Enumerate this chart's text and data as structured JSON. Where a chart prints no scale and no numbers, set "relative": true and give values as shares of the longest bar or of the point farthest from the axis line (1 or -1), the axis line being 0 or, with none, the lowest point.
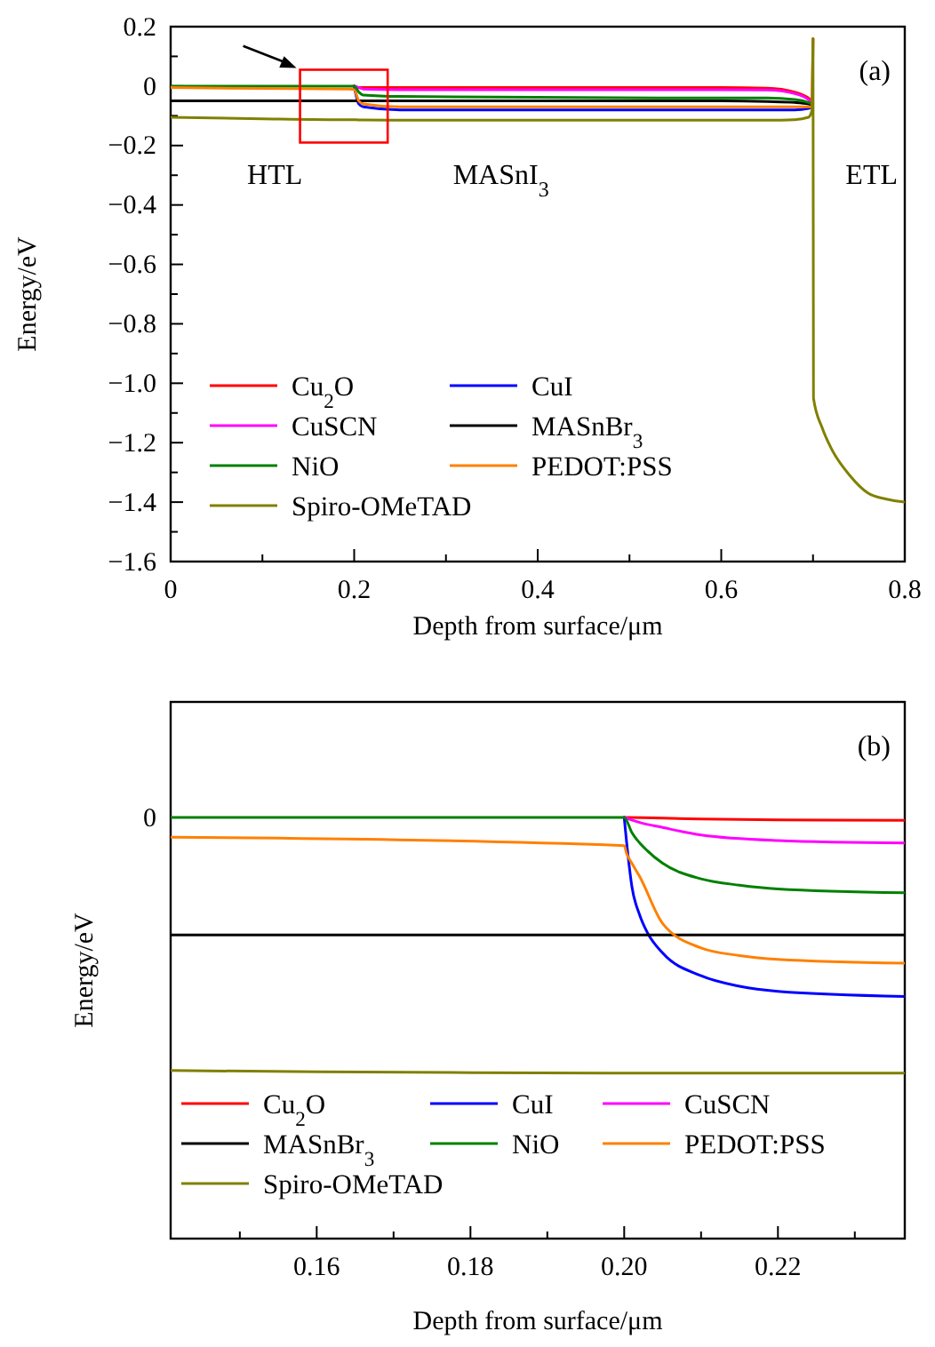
{
  "chart_data": [
    {
      "type": "line",
      "xlabel": "Depth from surface/μm",
      "ylabel": "Energy/eV",
      "xlim": [
        0,
        0.8
      ],
      "ylim": [
        -1.6,
        0.2
      ],
      "xticks": [
        0,
        {
          "value": 0.1,
          "label": null
        },
        0.2,
        {
          "value": 0.3,
          "label": null
        },
        0.4,
        {
          "value": 0.5,
          "label": null
        },
        0.6,
        {
          "value": 0.7,
          "label": null
        },
        0.8
      ],
      "yticks": [
        {
          "value": -1.6,
          "label": "−1.6"
        },
        {
          "value": -1.5,
          "label": null
        },
        {
          "value": -1.4,
          "label": "−1.4"
        },
        {
          "value": -1.3,
          "label": null
        },
        {
          "value": -1.2,
          "label": "−1.2"
        },
        {
          "value": -1.1,
          "label": null
        },
        {
          "value": -1.0,
          "label": "−1.0"
        },
        {
          "value": -0.9,
          "label": null
        },
        {
          "value": -0.8,
          "label": "−0.8"
        },
        {
          "value": -0.7,
          "label": null
        },
        {
          "value": -0.6,
          "label": "−0.6"
        },
        {
          "value": -0.5,
          "label": null
        },
        {
          "value": -0.4,
          "label": "−0.4"
        },
        {
          "value": -0.3,
          "label": null
        },
        {
          "value": -0.2,
          "label": "−0.2"
        },
        {
          "value": -0.1,
          "label": null
        },
        0,
        {
          "value": 0.1,
          "label": null
        },
        0.2
      ],
      "legend": "left",
      "annotations": [
        "(a)",
        "HTL",
        "MASnI$_{3}$",
        "ETL"
      ],
      "x": [
        0,
        0.1,
        0.195,
        0.2,
        0.205,
        0.21,
        0.25,
        0.4,
        0.6,
        0.65,
        0.68,
        0.695,
        0.699,
        0.7,
        0.7005,
        0.71,
        0.72,
        0.74,
        0.76,
        0.78,
        0.8
      ],
      "series": [
        {
          "name": "Cu$_{2}$O",
          "color": "#ff0000",
          "values": [
            null,
            null,
            null,
            0,
            -0.005,
            -0.005,
            -0.005,
            -0.005,
            -0.005,
            -0.007,
            -0.02,
            -0.04,
            -0.05,
            0.16,
            null,
            null,
            null,
            null,
            null,
            null,
            null
          ]
        },
        {
          "name": "CuI",
          "color": "#0000ff",
          "values": [
            null,
            null,
            null,
            0,
            -0.06,
            -0.07,
            -0.08,
            -0.08,
            -0.08,
            -0.08,
            -0.08,
            -0.075,
            -0.07,
            null,
            null,
            null,
            null,
            null,
            null,
            null,
            null
          ]
        },
        {
          "name": "CuSCN",
          "color": "#ff00ff",
          "values": [
            null,
            null,
            null,
            0,
            -0.005,
            -0.01,
            -0.012,
            -0.012,
            -0.012,
            -0.013,
            -0.025,
            -0.045,
            -0.055,
            null,
            null,
            null,
            null,
            null,
            null,
            null,
            null
          ]
        },
        {
          "name": "MASnBr$_{3}$",
          "color": "#000000",
          "values": [
            -0.05,
            -0.05,
            -0.05,
            -0.05,
            -0.05,
            -0.05,
            -0.05,
            -0.05,
            -0.05,
            -0.052,
            -0.055,
            -0.06,
            -0.065,
            null,
            null,
            null,
            null,
            null,
            null,
            null,
            null
          ]
        },
        {
          "name": "NiO",
          "color": "#008000",
          "values": [
            0,
            0,
            0,
            0,
            -0.02,
            -0.03,
            -0.035,
            -0.038,
            -0.04,
            -0.04,
            -0.045,
            -0.055,
            -0.06,
            null,
            null,
            null,
            null,
            null,
            null,
            null,
            null
          ]
        },
        {
          "name": "PEDOT:PSS",
          "color": "#ff8000",
          "values": [
            -0.005,
            -0.008,
            -0.01,
            -0.012,
            -0.05,
            -0.06,
            -0.07,
            -0.07,
            -0.07,
            -0.07,
            -0.07,
            -0.07,
            -0.07,
            0.16,
            null,
            null,
            null,
            null,
            null,
            null,
            null
          ]
        },
        {
          "name": "Spiro-OMeTAD",
          "color": "#808000",
          "values": [
            -0.105,
            -0.11,
            -0.113,
            -0.113,
            -0.114,
            -0.114,
            -0.115,
            -0.115,
            -0.115,
            -0.115,
            -0.113,
            -0.105,
            -0.08,
            0.16,
            -1.05,
            -1.15,
            -1.22,
            -1.31,
            -1.37,
            -1.39,
            -1.4
          ]
        }
      ]
    },
    {
      "type": "line",
      "xlabel": "Depth from surface/μm",
      "ylabel": "Energy/eV",
      "xlim": [
        0.141,
        0.2365
      ],
      "relative": true,
      "xticks": [
        {
          "value": 0.15,
          "label": null
        },
        0.16,
        {
          "value": 0.17,
          "label": null
        },
        {
          "value": 0.18,
          "label": "0.18"
        },
        {
          "value": 0.19,
          "label": null
        },
        {
          "value": 0.2,
          "label": "0.20"
        },
        {
          "value": 0.21,
          "label": null
        },
        0.22,
        {
          "value": 0.23,
          "label": null
        }
      ],
      "legend": "bottom left",
      "annotations": [
        "(b)",
        "0"
      ],
      "series": [
        {
          "name": "Cu$_{2}$O",
          "color": "#ff0000",
          "x": [
            0.2,
            0.205,
            0.21,
            0.22,
            0.2365
          ],
          "values": [
            1,
            0.998,
            0.996,
            0.994,
            0.993
          ]
        },
        {
          "name": "CuI",
          "color": "#0000ff",
          "x": [
            0.2,
            0.2005,
            0.201,
            0.202,
            0.203,
            0.205,
            0.21,
            0.215,
            0.22,
            0.2365
          ],
          "values": [
            1,
            0.909,
            0.836,
            0.769,
            0.727,
            0.678,
            0.624,
            0.599,
            0.587,
            0.575
          ]
        },
        {
          "name": "CuSCN",
          "color": "#ff00ff",
          "x": [
            0.2,
            0.202,
            0.205,
            0.21,
            0.22,
            0.2365
          ],
          "values": [
            1,
            0.988,
            0.976,
            0.958,
            0.945,
            0.939
          ]
        },
        {
          "name": "MASnBr$_{3}$",
          "color": "#000000",
          "x": [
            0.141,
            0.2365
          ],
          "values": [
            0.721,
            0.721
          ]
        },
        {
          "name": "NiO",
          "color": "#008000",
          "x": [
            0.141,
            0.2,
            0.201,
            0.203,
            0.205,
            0.21,
            0.215,
            0.22,
            0.2365
          ],
          "values": [
            1,
            1,
            0.964,
            0.921,
            0.891,
            0.854,
            0.839,
            0.83,
            0.821
          ]
        },
        {
          "name": "PEDOT:PSS",
          "color": "#ff8000",
          "x": [
            0.141,
            0.2,
            0.2003,
            0.201,
            0.202,
            0.205,
            0.21,
            0.215,
            0.22,
            0.2365
          ],
          "values": [
            0.953,
            0.933,
            0.915,
            0.891,
            0.86,
            0.748,
            0.69,
            0.672,
            0.663,
            0.654
          ]
        },
        {
          "name": "Spiro-OMeTAD",
          "color": "#808000",
          "x": [
            0.141,
            0.16,
            0.18,
            0.2,
            0.22,
            0.2365
          ],
          "values": [
            0.399,
            0.396,
            0.394,
            0.393,
            0.393,
            0.393
          ]
        }
      ]
    }
  ]
}
